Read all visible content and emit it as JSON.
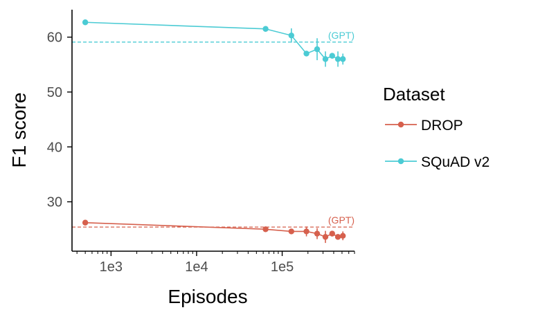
{
  "chart_data": {
    "type": "line",
    "xlabel": "Episodes",
    "ylabel": "F1 score",
    "x_scale": "log10",
    "xlim": [
      350,
      700000
    ],
    "ylim": [
      21,
      65
    ],
    "x_ticks": [
      1000,
      10000,
      100000
    ],
    "x_tick_labels": [
      "1e3",
      "1e4",
      "1e5"
    ],
    "y_ticks": [
      30,
      40,
      50,
      60
    ],
    "y_tick_labels": [
      "30",
      "40",
      "50",
      "60"
    ],
    "grid": false,
    "legend": {
      "title": "Dataset",
      "placement": "right"
    },
    "series": [
      {
        "name": "DROP",
        "color": "#d6604d",
        "x": [
          500,
          64000,
          128000,
          192000,
          256000,
          320000,
          384000,
          448000,
          512000
        ],
        "y": [
          26.2,
          25.0,
          24.6,
          24.6,
          24.2,
          23.6,
          24.2,
          23.6,
          23.8
        ],
        "err": [
          0.3,
          0.3,
          0.4,
          0.9,
          1.0,
          1.1,
          0.4,
          0.4,
          0.8
        ],
        "reference": {
          "value": 25.4,
          "label": "(GPT)"
        }
      },
      {
        "name": "SQuAD v2",
        "color": "#4bcbd4",
        "x": [
          500,
          64000,
          128000,
          192000,
          256000,
          320000,
          384000,
          448000,
          512000
        ],
        "y": [
          62.7,
          61.5,
          60.3,
          57.0,
          57.8,
          56.0,
          56.6,
          56.0,
          56.0
        ],
        "err": [
          0.3,
          0.3,
          1.3,
          0.5,
          2.0,
          1.4,
          0.5,
          1.4,
          1.0
        ],
        "reference": {
          "value": 59.1,
          "label": "(GPT)"
        }
      }
    ]
  }
}
